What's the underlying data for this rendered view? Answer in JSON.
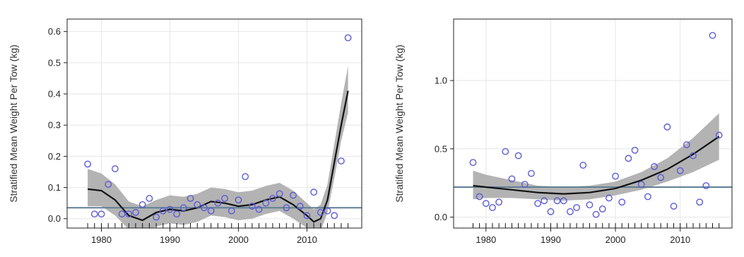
{
  "colors": {
    "point": "#5a5ad6",
    "trend": "#111111",
    "band": "#b3b3b3",
    "reference_line": "#5f7f96",
    "grid": "#e6e6e6",
    "frame": "#222222"
  },
  "chart_data": [
    {
      "type": "scatter",
      "ylabel": "Stratified Mean Weight Per Tow (kg)",
      "xlabel": "",
      "xlim": [
        1975,
        2018
      ],
      "ylim": [
        -0.03,
        0.64
      ],
      "x_ticks": [
        1980,
        1990,
        2000,
        2010
      ],
      "x_tick_labels": [
        "1980",
        "1990",
        "2000",
        "2010"
      ],
      "y_ticks": [
        0.0,
        0.1,
        0.2,
        0.3,
        0.4,
        0.5,
        0.6
      ],
      "y_tick_labels": [
        "0.0",
        "0.1",
        "0.2",
        "0.3",
        "0.4",
        "0.5",
        "0.6"
      ],
      "grid": true,
      "reference_line": 0.035,
      "rug_years": [
        1978,
        1979,
        1980,
        1981,
        1982,
        1983,
        1984,
        1985,
        1986,
        1987,
        1988,
        1989,
        1990,
        1991,
        1992,
        1993,
        1994,
        1995,
        1996,
        1997,
        1998,
        1999,
        2000,
        2001,
        2002,
        2003,
        2004,
        2005,
        2006,
        2007,
        2008,
        2009,
        2010,
        2011,
        2012,
        2013,
        2014,
        2015,
        2016
      ],
      "series": [
        {
          "x": [
            1978,
            1979,
            1980,
            1981,
            1982,
            1983,
            1984,
            1985,
            1986,
            1987,
            1988,
            1989,
            1990,
            1991,
            1992,
            1993,
            1994,
            1995,
            1996,
            1997,
            1998,
            1999,
            2000,
            2001,
            2002,
            2003,
            2004,
            2005,
            2006,
            2007,
            2008,
            2009,
            2010,
            2011,
            2012,
            2013,
            2014,
            2015,
            2016
          ],
          "y": [
            0.175,
            0.015,
            0.015,
            0.11,
            0.16,
            0.015,
            0.015,
            0.02,
            0.045,
            0.065,
            0.005,
            0.025,
            0.03,
            0.015,
            0.035,
            0.065,
            0.045,
            0.035,
            0.025,
            0.05,
            0.065,
            0.025,
            0.06,
            0.135,
            0.04,
            0.03,
            0.05,
            0.065,
            0.08,
            0.035,
            0.075,
            0.04,
            0.01,
            0.085,
            0.02,
            0.025,
            0.01,
            0.185,
            0.58
          ]
        }
      ],
      "trend": {
        "x": [
          1978,
          1980,
          1982,
          1984,
          1986,
          1988,
          1990,
          1992,
          1994,
          1996,
          1998,
          2000,
          2002,
          2004,
          2006,
          2008,
          2010,
          2011,
          2012,
          2013,
          2014,
          2015,
          2016
        ],
        "y": [
          0.095,
          0.09,
          0.06,
          0.01,
          -0.005,
          0.02,
          0.03,
          0.025,
          0.035,
          0.055,
          0.05,
          0.04,
          0.045,
          0.06,
          0.07,
          0.045,
          0.01,
          -0.01,
          0.0,
          0.06,
          0.18,
          0.3,
          0.41
        ],
        "band_lower": [
          0.04,
          0.04,
          0.01,
          -0.035,
          -0.05,
          -0.025,
          -0.015,
          -0.02,
          -0.01,
          0.01,
          0.005,
          -0.005,
          0.0,
          0.015,
          0.025,
          0.0,
          -0.03,
          -0.05,
          -0.04,
          0.02,
          0.13,
          0.25,
          0.34
        ],
        "band_upper": [
          0.16,
          0.145,
          0.11,
          0.055,
          0.04,
          0.06,
          0.075,
          0.07,
          0.08,
          0.1,
          0.095,
          0.085,
          0.09,
          0.105,
          0.115,
          0.09,
          0.05,
          0.03,
          0.045,
          0.11,
          0.24,
          0.37,
          0.49
        ]
      }
    },
    {
      "type": "scatter",
      "ylabel": "Stratified Mean Weight Per Tow (kg)",
      "xlabel": "",
      "xlim": [
        1975,
        2018
      ],
      "ylim": [
        -0.08,
        1.45
      ],
      "x_ticks": [
        1980,
        1990,
        2000,
        2010
      ],
      "x_tick_labels": [
        "1980",
        "1990",
        "2000",
        "2010"
      ],
      "y_ticks": [
        0.0,
        0.5,
        1.0
      ],
      "y_tick_labels": [
        "0.0",
        "0.5",
        "1.0"
      ],
      "grid": true,
      "reference_line": 0.22,
      "rug_years": [
        1978,
        1979,
        1980,
        1981,
        1982,
        1983,
        1984,
        1985,
        1986,
        1987,
        1988,
        1989,
        1990,
        1991,
        1992,
        1993,
        1994,
        1995,
        1996,
        1997,
        1998,
        1999,
        2000,
        2001,
        2002,
        2003,
        2004,
        2005,
        2006,
        2007,
        2008,
        2009,
        2010,
        2011,
        2012,
        2013,
        2014,
        2015,
        2016
      ],
      "series": [
        {
          "x": [
            1978,
            1979,
            1980,
            1981,
            1982,
            1983,
            1984,
            1985,
            1986,
            1987,
            1988,
            1989,
            1990,
            1991,
            1992,
            1993,
            1994,
            1995,
            1996,
            1997,
            1998,
            1999,
            2000,
            2001,
            2002,
            2003,
            2004,
            2005,
            2006,
            2007,
            2008,
            2009,
            2010,
            2011,
            2012,
            2013,
            2014,
            2015,
            2016
          ],
          "y": [
            0.4,
            0.15,
            0.1,
            0.07,
            0.11,
            0.48,
            0.28,
            0.45,
            0.24,
            0.32,
            0.1,
            0.12,
            0.04,
            0.12,
            0.12,
            0.04,
            0.07,
            0.38,
            0.09,
            0.02,
            0.06,
            0.14,
            0.3,
            0.11,
            0.43,
            0.49,
            0.24,
            0.15,
            0.37,
            0.29,
            0.66,
            0.08,
            0.34,
            0.53,
            0.45,
            0.11,
            0.23,
            1.33,
            0.6
          ]
        }
      ],
      "trend": {
        "x": [
          1978,
          1980,
          1984,
          1988,
          1992,
          1996,
          2000,
          2004,
          2008,
          2012,
          2016
        ],
        "y": [
          0.23,
          0.22,
          0.2,
          0.18,
          0.17,
          0.18,
          0.21,
          0.27,
          0.35,
          0.46,
          0.59
        ],
        "band_lower": [
          0.13,
          0.14,
          0.14,
          0.13,
          0.12,
          0.13,
          0.16,
          0.2,
          0.26,
          0.33,
          0.42
        ],
        "band_upper": [
          0.34,
          0.31,
          0.27,
          0.23,
          0.22,
          0.23,
          0.26,
          0.33,
          0.43,
          0.58,
          0.76
        ]
      }
    }
  ]
}
